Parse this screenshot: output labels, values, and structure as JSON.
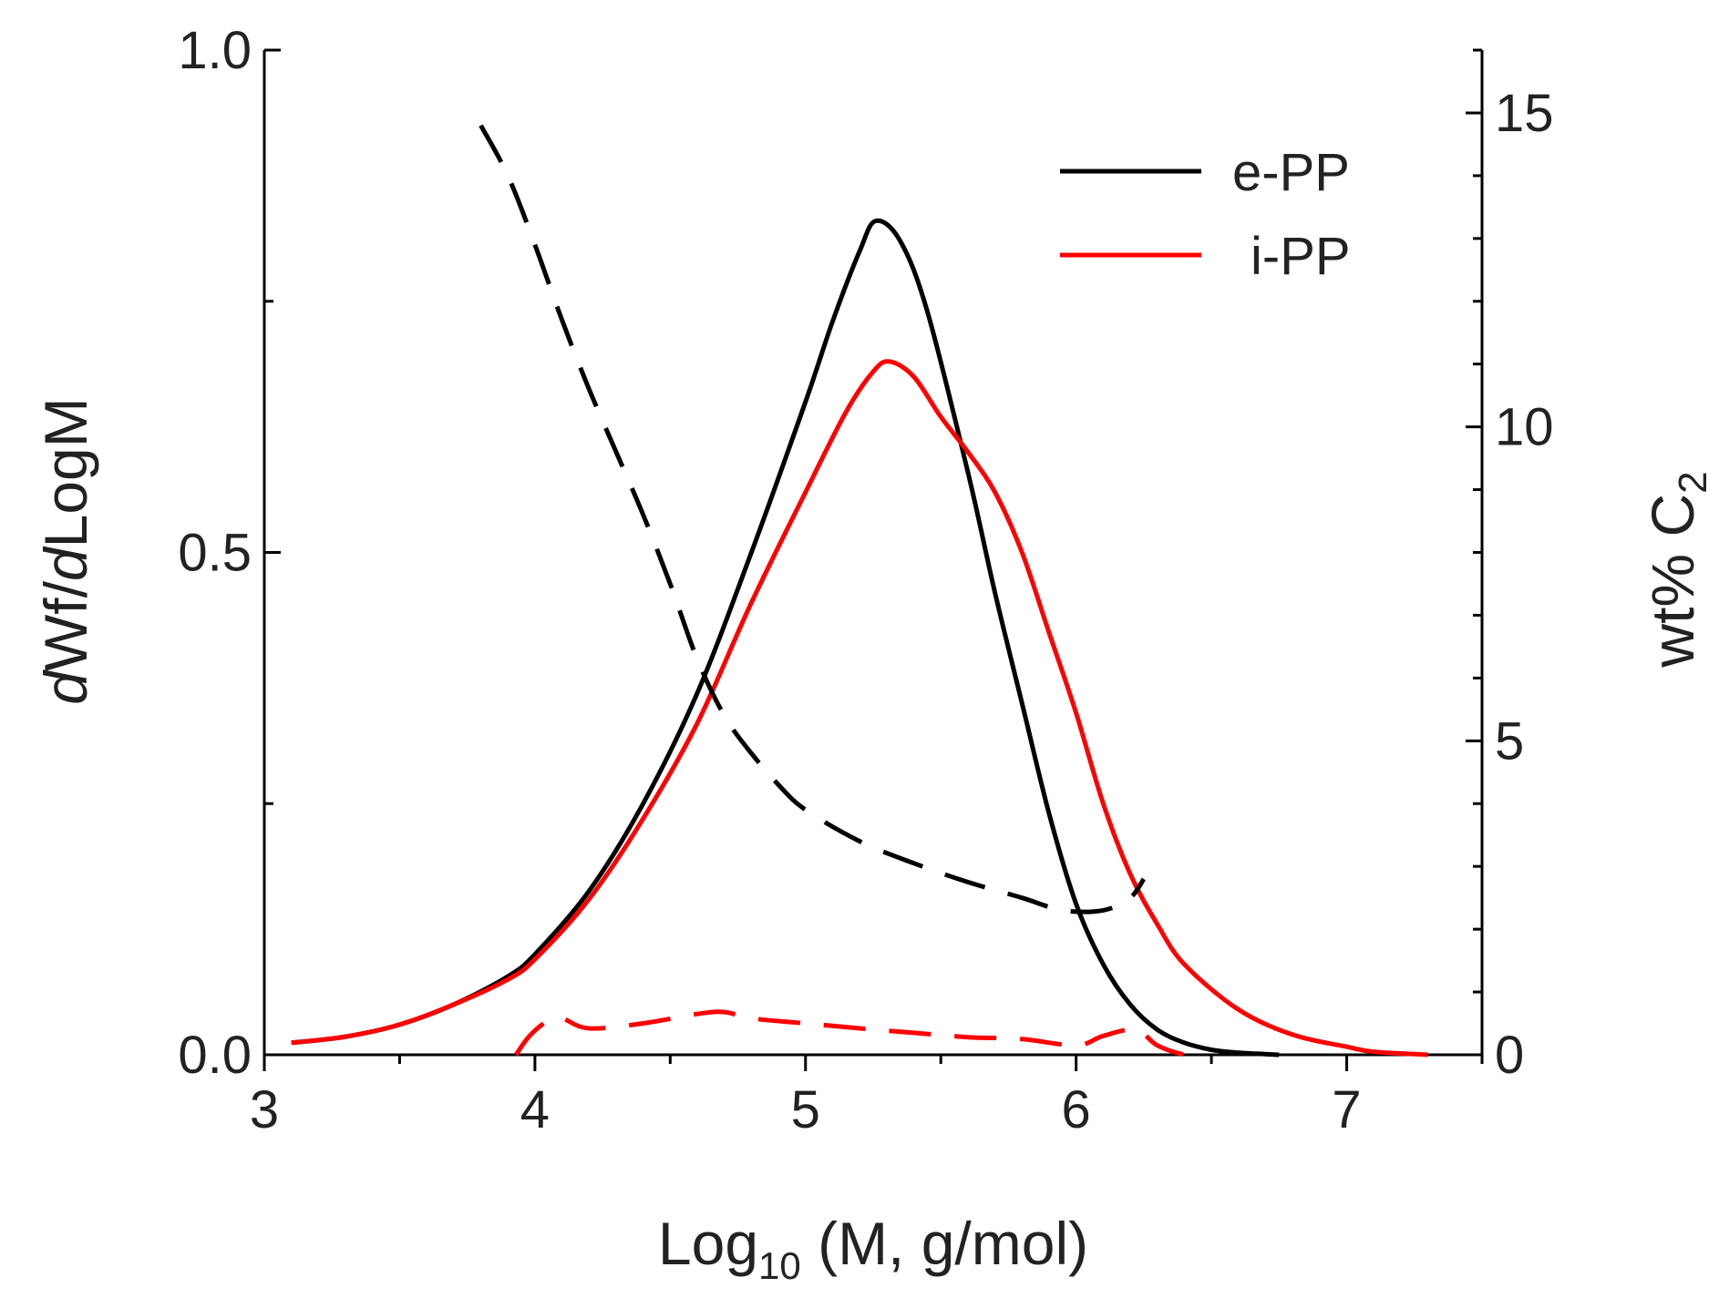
{
  "chart_data": {
    "type": "line",
    "title": "",
    "xlabel": {
      "base": "Log",
      "sub": "10",
      "rest": " (M, g/mol)"
    },
    "ylabel_left": {
      "p1": "d",
      "p2": "Wf/",
      "p3": "d",
      "p4": "LogM"
    },
    "ylabel_right": {
      "base": "wt% C",
      "sub": "2"
    },
    "xlim": [
      3,
      7.5
    ],
    "ylim_left": [
      0,
      1.0
    ],
    "ylim_right": [
      0,
      16
    ],
    "x_ticks": [
      "3",
      "4",
      "5",
      "6",
      "7"
    ],
    "y_left_ticks": [
      "0.0",
      "0.5",
      "1.0"
    ],
    "y_right_ticks": [
      "0",
      "5",
      "10",
      "15"
    ],
    "legend": {
      "position": "top-right",
      "entries": [
        "e-PP",
        "i-PP"
      ]
    },
    "colors": {
      "e-PP": "#000000",
      "i-PP": "#ff0000"
    },
    "series": [
      {
        "name": "e-PP",
        "axis": "left",
        "style": "solid",
        "x": [
          3.1,
          3.3,
          3.5,
          3.7,
          3.9,
          4.0,
          4.2,
          4.4,
          4.6,
          4.8,
          5.0,
          5.1,
          5.2,
          5.26,
          5.35,
          5.45,
          5.6,
          5.7,
          5.8,
          5.9,
          6.0,
          6.1,
          6.2,
          6.3,
          6.4,
          6.5,
          6.6,
          6.75
        ],
        "y": [
          0.012,
          0.018,
          0.03,
          0.05,
          0.078,
          0.1,
          0.163,
          0.25,
          0.36,
          0.5,
          0.65,
          0.73,
          0.8,
          0.83,
          0.81,
          0.74,
          0.58,
          0.46,
          0.35,
          0.24,
          0.15,
          0.09,
          0.05,
          0.025,
          0.012,
          0.005,
          0.002,
          0.0
        ]
      },
      {
        "name": "i-PP",
        "axis": "left",
        "style": "solid",
        "x": [
          3.1,
          3.3,
          3.5,
          3.7,
          3.9,
          4.0,
          4.2,
          4.4,
          4.6,
          4.8,
          5.0,
          5.15,
          5.25,
          5.31,
          5.4,
          5.5,
          5.6,
          5.7,
          5.8,
          5.9,
          6.0,
          6.1,
          6.2,
          6.3,
          6.4,
          6.6,
          6.8,
          7.0,
          7.1,
          7.3
        ],
        "y": [
          0.012,
          0.018,
          0.03,
          0.05,
          0.075,
          0.095,
          0.155,
          0.235,
          0.33,
          0.45,
          0.56,
          0.64,
          0.68,
          0.69,
          0.675,
          0.635,
          0.6,
          0.56,
          0.5,
          0.42,
          0.34,
          0.25,
          0.18,
          0.13,
          0.09,
          0.045,
          0.02,
          0.008,
          0.003,
          0.0
        ]
      },
      {
        "name": "e-PP wt% C2",
        "axis": "right",
        "style": "dashed",
        "x": [
          3.8,
          3.9,
          4.0,
          4.1,
          4.2,
          4.3,
          4.4,
          4.5,
          4.6,
          4.7,
          4.8,
          4.9,
          5.0,
          5.2,
          5.4,
          5.6,
          5.8,
          5.95,
          6.1,
          6.2,
          6.25
        ],
        "y": [
          14.8,
          14.0,
          12.9,
          11.7,
          10.6,
          9.6,
          8.6,
          7.5,
          6.3,
          5.4,
          4.8,
          4.3,
          3.9,
          3.4,
          3.05,
          2.75,
          2.5,
          2.3,
          2.3,
          2.5,
          2.8
        ]
      },
      {
        "name": "i-PP wt% C2",
        "axis": "right",
        "style": "dashed",
        "x": [
          3.93,
          3.98,
          4.05,
          4.1,
          4.2,
          4.4,
          4.6,
          4.7,
          4.8,
          5.0,
          5.2,
          5.4,
          5.6,
          5.8,
          6.0,
          6.1,
          6.22,
          6.3,
          6.4,
          6.45
        ],
        "y": [
          0.0,
          0.3,
          0.55,
          0.58,
          0.42,
          0.5,
          0.65,
          0.68,
          0.58,
          0.5,
          0.42,
          0.35,
          0.28,
          0.25,
          0.15,
          0.3,
          0.4,
          0.15,
          0.0,
          0.0
        ]
      }
    ]
  }
}
